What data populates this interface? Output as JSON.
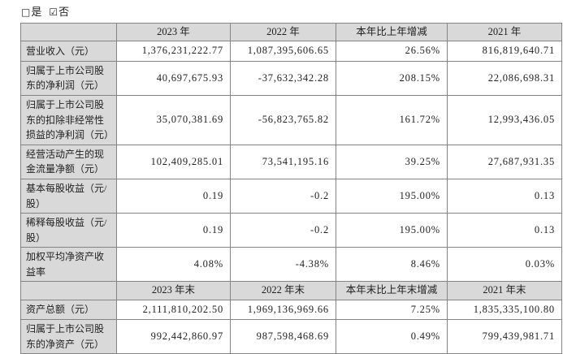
{
  "document": {
    "options": {
      "yes": {
        "glyph": "□",
        "label": "是",
        "checked": false
      },
      "no": {
        "glyph": "☑",
        "label": "否",
        "checked": true
      }
    }
  },
  "table": {
    "colors": {
      "border": "#848484",
      "header_bg": "#d9d9d9",
      "label_bg": "#d9d9d9",
      "cell_bg": "#ffffff",
      "text": "#1f1f1f"
    },
    "section1": {
      "headers": [
        "",
        "2023 年",
        "2022 年",
        "本年比上年增减",
        "2021 年"
      ],
      "rows": [
        {
          "label": "营业收入（元）",
          "values": [
            "1,376,231,222.77",
            "1,087,395,606.65",
            "26.56%",
            "816,819,640.71"
          ]
        },
        {
          "label": "归属于上市公司股东的净利润（元）",
          "values": [
            "40,697,675.93",
            "-37,632,342.28",
            "208.15%",
            "22,086,698.31"
          ]
        },
        {
          "label": "归属于上市公司股东的扣除非经常性损益的净利润（元）",
          "values": [
            "35,070,381.69",
            "-56,823,765.82",
            "161.72%",
            "12,993,436.05"
          ]
        },
        {
          "label": "经营活动产生的现金流量净额（元）",
          "values": [
            "102,409,285.01",
            "73,541,195.16",
            "39.25%",
            "27,687,931.35"
          ]
        },
        {
          "label": "基本每股收益（元/股）",
          "values": [
            "0.19",
            "-0.2",
            "195.00%",
            "0.13"
          ]
        },
        {
          "label": "稀释每股收益（元/股）",
          "values": [
            "0.19",
            "-0.2",
            "195.00%",
            "0.13"
          ]
        },
        {
          "label": "加权平均净资产收益率",
          "values": [
            "4.08%",
            "-4.38%",
            "8.46%",
            "0.03%"
          ]
        }
      ]
    },
    "section2": {
      "headers": [
        "",
        "2023 年末",
        "2022 年末",
        "本年末比上年末增减",
        "2021 年末"
      ],
      "rows": [
        {
          "label": "资产总额（元）",
          "values": [
            "2,111,810,202.50",
            "1,969,136,969.66",
            "7.25%",
            "1,835,335,100.80"
          ]
        },
        {
          "label": "归属于上市公司股东的净资产（元）",
          "values": [
            "992,442,860.97",
            "987,598,468.69",
            "0.49%",
            "799,439,981.71"
          ]
        }
      ]
    }
  }
}
